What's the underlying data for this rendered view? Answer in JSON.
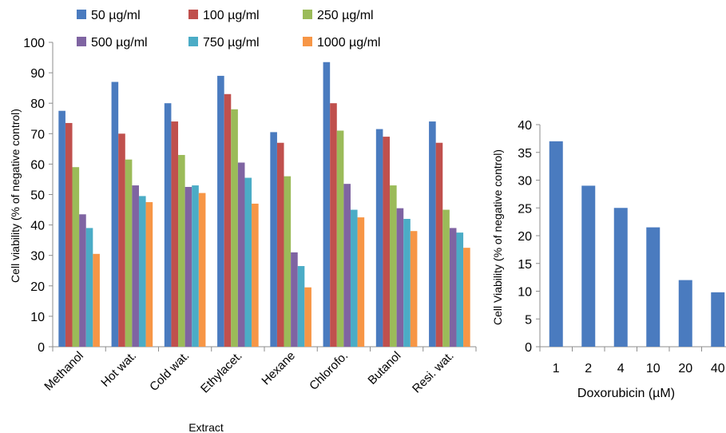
{
  "chart_data": [
    {
      "type": "bar",
      "xlabel": "Extract",
      "ylabel": "Cell viability (% of negative control)",
      "ylim": [
        0,
        100
      ],
      "yticks": [
        0,
        10,
        20,
        30,
        40,
        50,
        60,
        70,
        80,
        90,
        100
      ],
      "legend_position": "top",
      "categories": [
        "Methanol",
        "Hot wat.",
        "Cold wat.",
        "Ethylacet.",
        "Hexane",
        "Chlorofo.",
        "Butanol",
        "Resi. wat."
      ],
      "series": [
        {
          "name": "50 µg/ml",
          "color": "#4a7bbf",
          "values": [
            77.5,
            87,
            80,
            89,
            70.5,
            93.5,
            71.5,
            74
          ]
        },
        {
          "name": "100 µg/ml",
          "color": "#c0504d",
          "values": [
            73.5,
            70,
            74,
            83,
            67,
            80,
            69,
            67
          ]
        },
        {
          "name": "250 µg/ml",
          "color": "#9bbb59",
          "values": [
            59,
            61.5,
            63,
            78,
            56,
            71,
            53,
            45
          ]
        },
        {
          "name": "500 µg/ml",
          "color": "#7f64a2",
          "values": [
            43.5,
            53,
            52.5,
            60.5,
            31,
            53.5,
            45.5,
            39
          ]
        },
        {
          "name": "750 µg/ml",
          "color": "#4bacc6",
          "values": [
            39,
            49.5,
            53,
            55.5,
            26.5,
            45,
            42,
            37.5
          ]
        },
        {
          "name": "1000 µg/ml",
          "color": "#f79646",
          "values": [
            30.5,
            47.5,
            50.5,
            47,
            19.5,
            42.5,
            38,
            32.5
          ]
        }
      ]
    },
    {
      "type": "bar",
      "xlabel": "Doxorubicin (µM)",
      "ylabel": "Cell Viability (% of negative control)",
      "ylim": [
        0,
        40
      ],
      "yticks": [
        0,
        5,
        10,
        15,
        20,
        25,
        30,
        35,
        40
      ],
      "categories": [
        "1",
        "2",
        "4",
        "10",
        "20",
        "40"
      ],
      "series": [
        {
          "name": "",
          "color": "#4a7bbf",
          "values": [
            37,
            29,
            25,
            21.5,
            12,
            9.8
          ]
        }
      ]
    }
  ]
}
